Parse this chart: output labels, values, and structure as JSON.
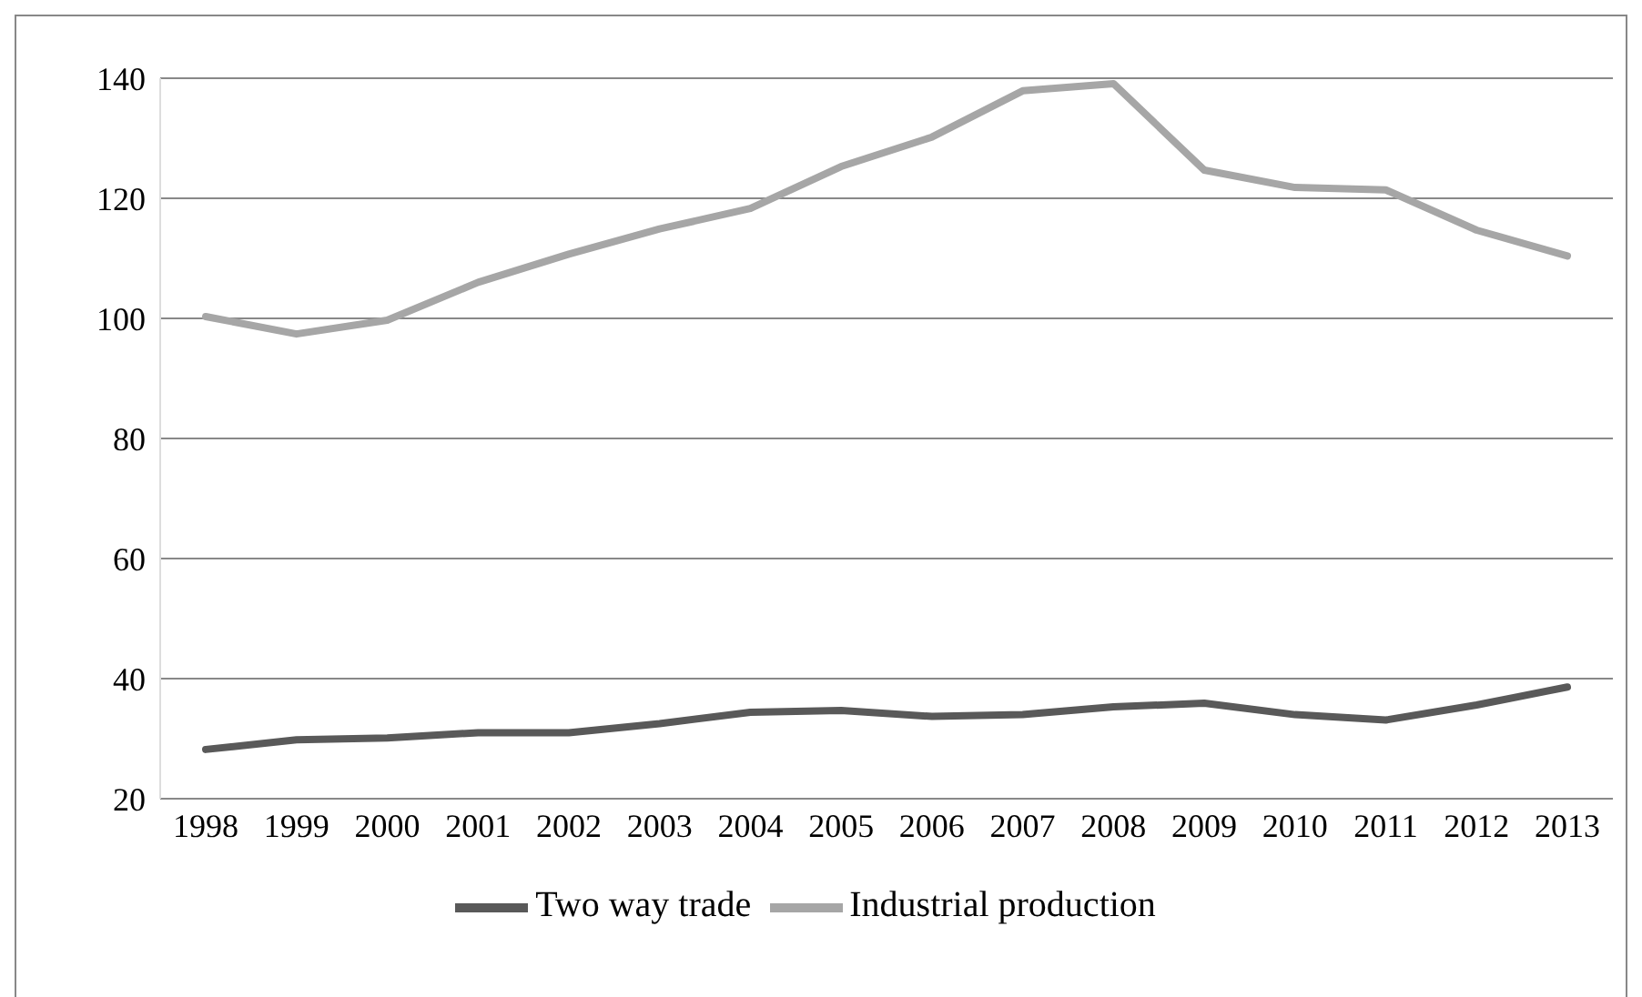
{
  "chart_data": {
    "type": "line",
    "categories": [
      "1998",
      "1999",
      "2000",
      "2001",
      "2002",
      "2003",
      "2004",
      "2005",
      "2006",
      "2007",
      "2008",
      "2009",
      "2010",
      "2011",
      "2012",
      "2013"
    ],
    "series": [
      {
        "name": "Two way trade",
        "color": "#595959",
        "values": [
          28.2,
          29.8,
          30.1,
          31,
          31,
          32.5,
          34.4,
          34.7,
          33.7,
          34,
          35.3,
          35.9,
          34,
          33.1,
          35.6,
          38.6
        ]
      },
      {
        "name": "Industrial production",
        "color": "#a6a6a6",
        "values": [
          100.3,
          97.4,
          99.7,
          106,
          110.7,
          114.9,
          118.3,
          125.3,
          130.2,
          137.9,
          139.1,
          124.7,
          121.8,
          121.4,
          114.7,
          110.4
        ]
      }
    ],
    "ylim": [
      20,
      140
    ],
    "yticks": [
      20,
      40,
      60,
      80,
      100,
      120,
      140
    ],
    "grid": "y",
    "legend": "bottom",
    "marker": "none",
    "line_style": "solid"
  }
}
